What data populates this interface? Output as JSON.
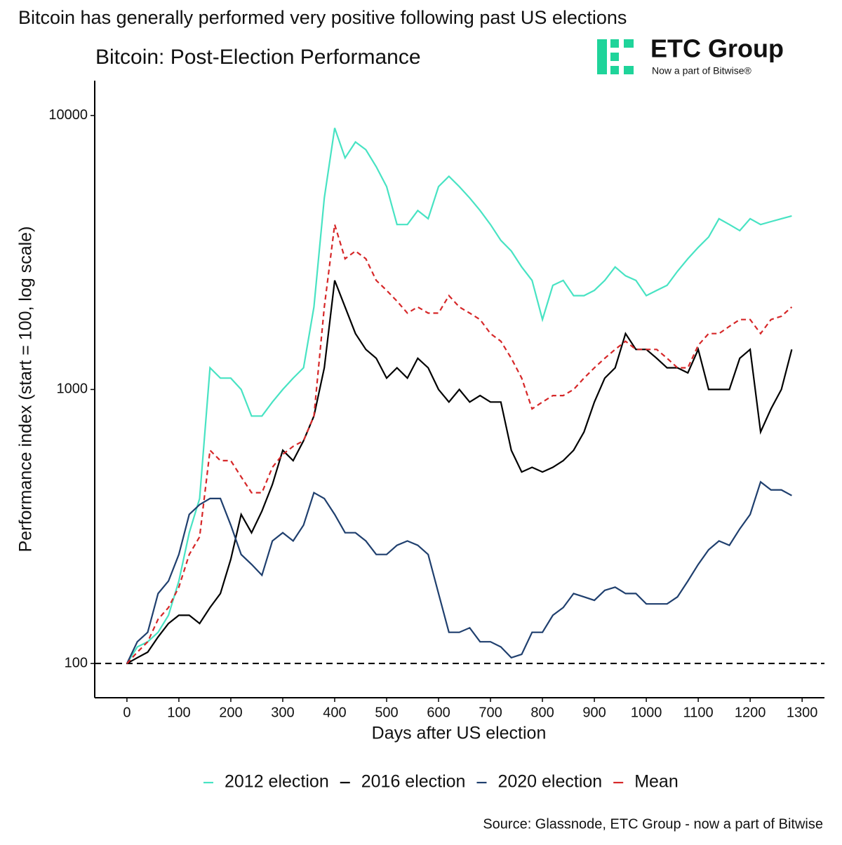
{
  "headline": "Bitcoin has generally performed very positive following past US elections",
  "logo": {
    "name": "ETC Group",
    "tagline": "Now a part of Bitwise®"
  },
  "source": "Source: Glassnode, ETC Group - now a part of Bitwise",
  "chart_data": {
    "type": "line",
    "title": "Bitcoin: Post-Election Performance",
    "x_label": "Days after US election",
    "y_label": "Performance index (start = 100, log scale)",
    "log_y": true,
    "grid": false,
    "legend": "bottom",
    "reference_line": 100,
    "x": [
      0,
      20,
      40,
      60,
      80,
      100,
      120,
      140,
      160,
      180,
      200,
      220,
      240,
      260,
      280,
      300,
      320,
      340,
      360,
      380,
      400,
      420,
      440,
      460,
      480,
      500,
      520,
      540,
      560,
      580,
      600,
      620,
      640,
      660,
      680,
      700,
      720,
      740,
      760,
      780,
      800,
      820,
      840,
      860,
      880,
      900,
      920,
      940,
      960,
      980,
      1000,
      1020,
      1040,
      1060,
      1080,
      1100,
      1120,
      1140,
      1160,
      1180,
      1200,
      1220,
      1240,
      1260,
      1280
    ],
    "series": [
      {
        "name": "2012 election",
        "color": "#48e3c3",
        "dashed": false,
        "values": [
          100,
          115,
          120,
          130,
          150,
          200,
          300,
          400,
          1200,
          1100,
          1100,
          1000,
          800,
          800,
          900,
          1000,
          1100,
          1200,
          2000,
          5000,
          9000,
          7000,
          8000,
          7500,
          6500,
          5500,
          4000,
          4000,
          4500,
          4200,
          5500,
          6000,
          5500,
          5000,
          4500,
          4000,
          3500,
          3200,
          2800,
          2500,
          1800,
          2400,
          2500,
          2200,
          2200,
          2300,
          2500,
          2800,
          2600,
          2500,
          2200,
          2300,
          2400,
          2700,
          3000,
          3300,
          3600,
          4200,
          4000,
          3800,
          4200,
          4000,
          4100,
          4200,
          4300
        ]
      },
      {
        "name": "2016 election",
        "color": "#000000",
        "dashed": false,
        "values": [
          100,
          105,
          110,
          125,
          140,
          150,
          150,
          140,
          160,
          180,
          240,
          350,
          300,
          360,
          450,
          600,
          550,
          650,
          800,
          1200,
          2500,
          2000,
          1600,
          1400,
          1300,
          1100,
          1200,
          1100,
          1300,
          1200,
          1000,
          900,
          1000,
          900,
          950,
          900,
          900,
          600,
          500,
          520,
          500,
          520,
          550,
          600,
          700,
          900,
          1100,
          1200,
          1600,
          1400,
          1400,
          1300,
          1200,
          1200,
          1150,
          1400,
          1000,
          1000,
          1000,
          1300,
          1400,
          700,
          850,
          1000,
          1400
        ]
      },
      {
        "name": "2020 election",
        "color": "#1f3f6e",
        "dashed": false,
        "values": [
          100,
          120,
          130,
          180,
          200,
          250,
          350,
          380,
          400,
          400,
          320,
          250,
          230,
          210,
          280,
          300,
          280,
          320,
          420,
          400,
          350,
          300,
          300,
          280,
          250,
          250,
          270,
          280,
          270,
          250,
          180,
          130,
          130,
          135,
          120,
          120,
          115,
          105,
          108,
          130,
          130,
          150,
          160,
          180,
          175,
          170,
          185,
          190,
          180,
          180,
          165,
          165,
          165,
          175,
          200,
          230,
          260,
          280,
          270,
          310,
          350,
          460,
          430,
          430,
          410
        ]
      },
      {
        "name": "Mean",
        "color": "#d62728",
        "dashed": true,
        "values": [
          100,
          110,
          120,
          145,
          160,
          190,
          250,
          290,
          600,
          550,
          550,
          480,
          420,
          420,
          520,
          580,
          620,
          650,
          800,
          2000,
          4000,
          3000,
          3200,
          3000,
          2500,
          2300,
          2100,
          1900,
          2000,
          1900,
          1900,
          2200,
          2000,
          1900,
          1800,
          1600,
          1500,
          1300,
          1100,
          850,
          900,
          950,
          950,
          1000,
          1100,
          1200,
          1300,
          1400,
          1500,
          1400,
          1400,
          1400,
          1300,
          1200,
          1200,
          1450,
          1600,
          1600,
          1700,
          1800,
          1800,
          1600,
          1800,
          1850,
          2000
        ]
      }
    ],
    "xlim": [
      -62,
      1343
    ],
    "xticks": [
      0,
      100,
      200,
      300,
      400,
      500,
      600,
      700,
      800,
      900,
      1000,
      1100,
      1200,
      1300
    ],
    "ylim": [
      75,
      13400
    ],
    "yticks": [
      100,
      1000,
      10000
    ]
  }
}
